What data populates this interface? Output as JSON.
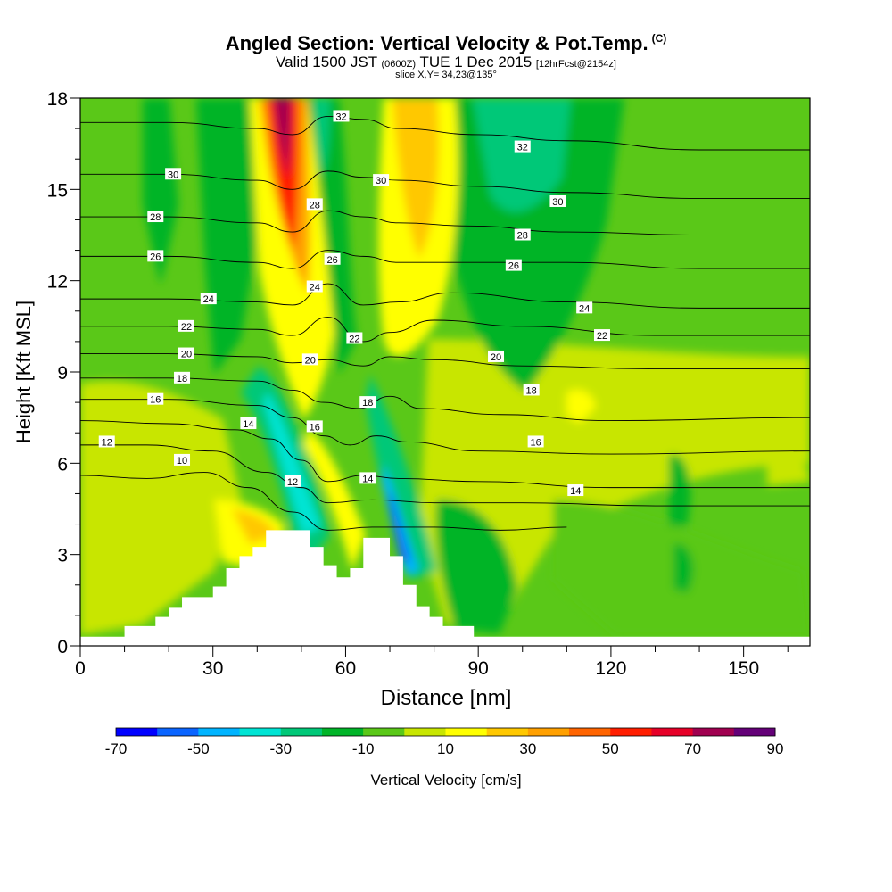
{
  "header": {
    "title": "Angled Section: Vertical Velocity & Pot.Temp.",
    "title_sup": "(C)",
    "valid_prefix": "Valid 1500 JST",
    "valid_z": "(0600Z)",
    "valid_date": "TUE 1 Dec 2015",
    "valid_fcst": "[12hrFcst@2154z]",
    "slice": "slice X,Y= 34,23@135°"
  },
  "chart_data": {
    "type": "heatmap",
    "xlabel": "Distance [nm]",
    "ylabel": "Height [Kft MSL]",
    "xlim": [
      0,
      165
    ],
    "ylim": [
      0,
      18
    ],
    "x_ticks": [
      0,
      30,
      60,
      90,
      120,
      150
    ],
    "y_ticks": [
      0,
      3,
      6,
      9,
      12,
      15,
      18
    ],
    "colorbar": {
      "label": "Vertical Velocity [cm/s]",
      "range": [
        -70,
        90
      ],
      "tick_labels": [
        "-70",
        "-50",
        "-30",
        "-10",
        "10",
        "30",
        "50",
        "70",
        "90"
      ],
      "colors": [
        "#0000ff",
        "#0a64ff",
        "#00b4ff",
        "#00e4d4",
        "#00c878",
        "#00b428",
        "#5ac818",
        "#c8e600",
        "#ffff00",
        "#ffc800",
        "#ffa000",
        "#ff6400",
        "#ff1e00",
        "#e60028",
        "#a00050",
        "#640078"
      ]
    },
    "terrain_kft": [
      [
        0,
        0.3
      ],
      [
        10,
        0.3
      ],
      [
        10,
        0.65
      ],
      [
        17,
        0.65
      ],
      [
        17,
        0.95
      ],
      [
        20,
        0.95
      ],
      [
        20,
        1.25
      ],
      [
        23,
        1.25
      ],
      [
        23,
        1.6
      ],
      [
        30,
        1.6
      ],
      [
        30,
        1.95
      ],
      [
        33,
        1.95
      ],
      [
        33,
        2.55
      ],
      [
        36,
        2.55
      ],
      [
        36,
        2.95
      ],
      [
        39,
        2.95
      ],
      [
        39,
        3.25
      ],
      [
        42,
        3.25
      ],
      [
        42,
        3.8
      ],
      [
        52,
        3.8
      ],
      [
        52,
        3.25
      ],
      [
        55,
        3.25
      ],
      [
        55,
        2.65
      ],
      [
        58,
        2.65
      ],
      [
        58,
        2.25
      ],
      [
        61,
        2.25
      ],
      [
        61,
        2.55
      ],
      [
        64,
        2.55
      ],
      [
        64,
        3.55
      ],
      [
        70,
        3.55
      ],
      [
        70,
        2.95
      ],
      [
        73,
        2.95
      ],
      [
        73,
        2.0
      ],
      [
        76,
        2.0
      ],
      [
        76,
        1.3
      ],
      [
        79,
        1.3
      ],
      [
        79,
        0.95
      ],
      [
        82,
        0.95
      ],
      [
        82,
        0.65
      ],
      [
        89,
        0.65
      ],
      [
        89,
        0.3
      ],
      [
        165,
        0.3
      ]
    ],
    "velocity_features": [
      {
        "name": "updraft core",
        "x": [
          42,
          54
        ],
        "y": [
          10,
          18
        ],
        "max": 90
      },
      {
        "name": "updraft lee branch",
        "x": [
          64,
          76
        ],
        "y": [
          9,
          18
        ],
        "max": 30
      },
      {
        "name": "downdraft west",
        "x": [
          44,
          60
        ],
        "y": [
          3,
          9
        ],
        "min": -30
      },
      {
        "name": "downdraft east",
        "x": [
          67,
          76
        ],
        "y": [
          2,
          6
        ],
        "min": -60
      },
      {
        "name": "downdraft upper east",
        "x": [
          80,
          120
        ],
        "y": [
          10,
          18
        ],
        "min": -30
      }
    ],
    "theta_contours": [
      {
        "label": "10",
        "points": [
          [
            0,
            5.6
          ],
          [
            15,
            5.5
          ],
          [
            28,
            5.7
          ],
          [
            38,
            5.2
          ],
          [
            48,
            4.4
          ],
          [
            56,
            3.8
          ],
          [
            66,
            3.9
          ],
          [
            80,
            3.9
          ],
          [
            95,
            3.8
          ],
          [
            110,
            3.9
          ]
        ]
      },
      {
        "label": "12",
        "points": [
          [
            0,
            6.6
          ],
          [
            15,
            6.6
          ],
          [
            30,
            6.4
          ],
          [
            42,
            5.7
          ],
          [
            50,
            5.2
          ],
          [
            56,
            4.7
          ],
          [
            66,
            4.8
          ],
          [
            80,
            4.7
          ],
          [
            100,
            4.7
          ],
          [
            130,
            4.6
          ],
          [
            165,
            4.6
          ]
        ]
      },
      {
        "label": "14",
        "points": [
          [
            0,
            7.4
          ],
          [
            20,
            7.3
          ],
          [
            35,
            7.1
          ],
          [
            43,
            6.8
          ],
          [
            50,
            6.1
          ],
          [
            56,
            5.4
          ],
          [
            64,
            5.6
          ],
          [
            72,
            5.5
          ],
          [
            90,
            5.4
          ],
          [
            120,
            5.2
          ],
          [
            165,
            5.2
          ]
        ]
      },
      {
        "label": "16",
        "points": [
          [
            0,
            8.1
          ],
          [
            20,
            8.1
          ],
          [
            40,
            7.9
          ],
          [
            48,
            7.5
          ],
          [
            55,
            6.9
          ],
          [
            61,
            6.6
          ],
          [
            67,
            6.9
          ],
          [
            74,
            6.7
          ],
          [
            90,
            6.4
          ],
          [
            120,
            6.3
          ],
          [
            165,
            6.4
          ]
        ]
      },
      {
        "label": "18",
        "points": [
          [
            0,
            8.8
          ],
          [
            20,
            8.8
          ],
          [
            40,
            8.7
          ],
          [
            48,
            8.4
          ],
          [
            55,
            8.0
          ],
          [
            63,
            7.8
          ],
          [
            70,
            8.2
          ],
          [
            77,
            7.8
          ],
          [
            95,
            7.6
          ],
          [
            120,
            7.4
          ],
          [
            165,
            7.5
          ]
        ]
      },
      {
        "label": "20",
        "points": [
          [
            0,
            9.6
          ],
          [
            20,
            9.6
          ],
          [
            40,
            9.5
          ],
          [
            48,
            9.3
          ],
          [
            56,
            9.4
          ],
          [
            64,
            9.2
          ],
          [
            70,
            9.5
          ],
          [
            80,
            9.4
          ],
          [
            100,
            9.2
          ],
          [
            130,
            9.1
          ],
          [
            165,
            9.1
          ]
        ]
      },
      {
        "label": "22",
        "points": [
          [
            0,
            10.5
          ],
          [
            20,
            10.5
          ],
          [
            40,
            10.4
          ],
          [
            48,
            10.2
          ],
          [
            56,
            10.8
          ],
          [
            64,
            10.0
          ],
          [
            70,
            10.3
          ],
          [
            80,
            10.7
          ],
          [
            100,
            10.5
          ],
          [
            130,
            10.2
          ],
          [
            165,
            10.2
          ]
        ]
      },
      {
        "label": "24",
        "points": [
          [
            0,
            11.4
          ],
          [
            20,
            11.4
          ],
          [
            40,
            11.3
          ],
          [
            48,
            11.2
          ],
          [
            56,
            11.9
          ],
          [
            64,
            11.2
          ],
          [
            72,
            11.3
          ],
          [
            84,
            11.6
          ],
          [
            110,
            11.3
          ],
          [
            140,
            11.1
          ],
          [
            165,
            11.1
          ]
        ]
      },
      {
        "label": "26",
        "points": [
          [
            0,
            12.8
          ],
          [
            20,
            12.8
          ],
          [
            40,
            12.6
          ],
          [
            48,
            12.4
          ],
          [
            56,
            13.0
          ],
          [
            64,
            12.8
          ],
          [
            72,
            12.6
          ],
          [
            86,
            12.6
          ],
          [
            110,
            12.6
          ],
          [
            140,
            12.4
          ],
          [
            165,
            12.4
          ]
        ]
      },
      {
        "label": "28",
        "points": [
          [
            0,
            14.1
          ],
          [
            20,
            14.1
          ],
          [
            40,
            13.9
          ],
          [
            48,
            13.6
          ],
          [
            56,
            14.3
          ],
          [
            64,
            14.1
          ],
          [
            72,
            13.9
          ],
          [
            88,
            13.8
          ],
          [
            110,
            13.6
          ],
          [
            140,
            13.5
          ],
          [
            165,
            13.5
          ]
        ]
      },
      {
        "label": "30",
        "points": [
          [
            0,
            15.5
          ],
          [
            20,
            15.5
          ],
          [
            40,
            15.3
          ],
          [
            48,
            15.0
          ],
          [
            56,
            15.6
          ],
          [
            64,
            15.4
          ],
          [
            72,
            15.3
          ],
          [
            90,
            15.1
          ],
          [
            110,
            14.9
          ],
          [
            140,
            14.7
          ],
          [
            165,
            14.7
          ]
        ]
      },
      {
        "label": "32",
        "points": [
          [
            0,
            17.2
          ],
          [
            20,
            17.2
          ],
          [
            40,
            17.0
          ],
          [
            48,
            16.8
          ],
          [
            56,
            17.4
          ],
          [
            64,
            17.3
          ],
          [
            72,
            17.0
          ],
          [
            90,
            16.8
          ],
          [
            110,
            16.6
          ],
          [
            140,
            16.3
          ],
          [
            165,
            16.3
          ]
        ]
      }
    ],
    "contour_labels": [
      {
        "text": "10",
        "x": 23,
        "y": 6.1
      },
      {
        "text": "12",
        "x": 6,
        "y": 6.7
      },
      {
        "text": "12",
        "x": 48,
        "y": 5.4
      },
      {
        "text": "14",
        "x": 38,
        "y": 7.3
      },
      {
        "text": "14",
        "x": 65,
        "y": 5.5
      },
      {
        "text": "14",
        "x": 112,
        "y": 5.1
      },
      {
        "text": "16",
        "x": 17,
        "y": 8.1
      },
      {
        "text": "16",
        "x": 53,
        "y": 7.2
      },
      {
        "text": "16",
        "x": 103,
        "y": 6.7
      },
      {
        "text": "18",
        "x": 23,
        "y": 8.8
      },
      {
        "text": "18",
        "x": 65,
        "y": 8.0
      },
      {
        "text": "18",
        "x": 102,
        "y": 8.4
      },
      {
        "text": "20",
        "x": 24,
        "y": 9.6
      },
      {
        "text": "20",
        "x": 52,
        "y": 9.4
      },
      {
        "text": "20",
        "x": 94,
        "y": 9.5
      },
      {
        "text": "22",
        "x": 24,
        "y": 10.5
      },
      {
        "text": "22",
        "x": 62,
        "y": 10.1
      },
      {
        "text": "22",
        "x": 118,
        "y": 10.2
      },
      {
        "text": "24",
        "x": 29,
        "y": 11.4
      },
      {
        "text": "24",
        "x": 53,
        "y": 11.8
      },
      {
        "text": "24",
        "x": 114,
        "y": 11.1
      },
      {
        "text": "26",
        "x": 17,
        "y": 12.8
      },
      {
        "text": "26",
        "x": 57,
        "y": 12.7
      },
      {
        "text": "26",
        "x": 98,
        "y": 12.5
      },
      {
        "text": "28",
        "x": 17,
        "y": 14.1
      },
      {
        "text": "28",
        "x": 53,
        "y": 14.5
      },
      {
        "text": "28",
        "x": 100,
        "y": 13.5
      },
      {
        "text": "30",
        "x": 21,
        "y": 15.5
      },
      {
        "text": "30",
        "x": 68,
        "y": 15.3
      },
      {
        "text": "30",
        "x": 108,
        "y": 14.6
      },
      {
        "text": "32",
        "x": 59,
        "y": 17.4
      },
      {
        "text": "32",
        "x": 100,
        "y": 16.4
      }
    ]
  }
}
